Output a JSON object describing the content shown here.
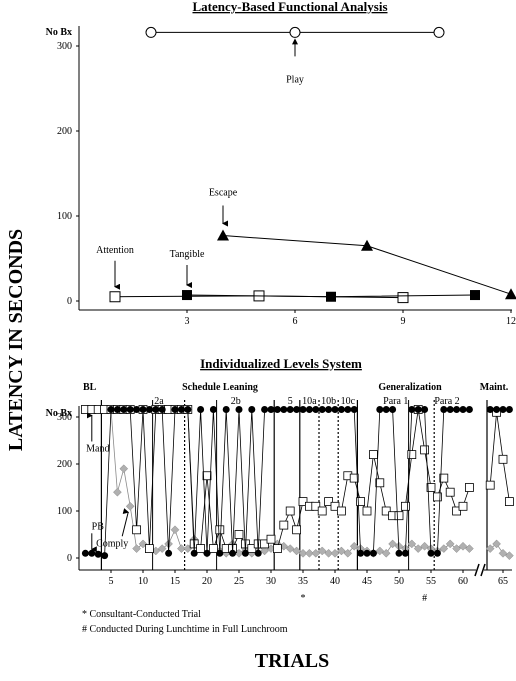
{
  "y_axis_label": "LATENCY IN SECONDS",
  "x_axis_label": "TRIALS",
  "chart_data": [
    {
      "type": "line",
      "title": "Latency-Based Functional Analysis",
      "xlabel": "",
      "ylabel": "LATENCY IN SECONDS",
      "xlim": [
        0,
        12
      ],
      "ylim": [
        0,
        310
      ],
      "x_ticks": [
        3,
        6,
        9,
        12
      ],
      "y_ticks": [
        0,
        100,
        200,
        300
      ],
      "y_top_label": "No Bx",
      "series": [
        {
          "name": "Play",
          "marker": "open-circle",
          "x": [
            2,
            6,
            10
          ],
          "y": [
            316,
            316,
            316
          ]
        },
        {
          "name": "Escape",
          "marker": "filled-triangle",
          "x": [
            4,
            8,
            12
          ],
          "y": [
            77,
            65,
            8
          ]
        },
        {
          "name": "Attention",
          "marker": "open-square",
          "x": [
            1,
            5,
            9
          ],
          "y": [
            5,
            6,
            4
          ]
        },
        {
          "name": "Tangible",
          "marker": "filled-square",
          "x": [
            3,
            7,
            11
          ],
          "y": [
            7,
            5,
            7
          ]
        }
      ],
      "annotations": [
        {
          "text": "Attention",
          "x": 1,
          "y": 5
        },
        {
          "text": "Tangible",
          "x": 3,
          "y": 7
        },
        {
          "text": "Escape",
          "x": 4,
          "y": 77
        },
        {
          "text": "Play",
          "x": 6,
          "y": 316
        }
      ]
    },
    {
      "type": "line",
      "title": "Individualized Levels System",
      "xlabel": "TRIALS",
      "ylabel": "LATENCY IN SECONDS",
      "xlim": [
        0,
        67
      ],
      "ylim": [
        0,
        320
      ],
      "axis_break_after": 62,
      "x_ticks": [
        5,
        10,
        15,
        20,
        25,
        30,
        35,
        40,
        45,
        50,
        55,
        60,
        65
      ],
      "y_ticks": [
        0,
        100,
        200,
        300
      ],
      "y_top_label": "No Bx",
      "phases": [
        "BL",
        "Schedule Leaning",
        "Generalization",
        "Maint."
      ],
      "sub_phases": [
        "2a",
        "2b",
        "5",
        "10a",
        "10b",
        "10c",
        "Para 1",
        "Para 2"
      ],
      "series": [
        {
          "name": "PB",
          "marker": "filled-circle",
          "x": [
            1,
            2,
            3,
            4,
            5,
            6,
            7,
            8,
            9,
            10,
            11,
            12,
            13,
            14,
            15,
            16,
            17,
            18,
            19,
            20,
            21,
            22,
            23,
            24,
            25,
            26,
            27,
            28,
            29,
            30,
            31,
            32,
            33,
            34,
            35,
            36,
            37,
            38,
            39,
            40,
            41,
            42,
            43,
            44,
            45,
            46,
            47,
            48,
            49,
            50,
            51,
            52,
            53,
            54,
            55,
            56,
            57,
            58,
            59,
            60,
            61,
            63,
            64,
            65,
            66
          ],
          "y": [
            10,
            10,
            8,
            5,
            316,
            316,
            316,
            316,
            316,
            316,
            316,
            316,
            316,
            10,
            316,
            316,
            316,
            10,
            316,
            10,
            316,
            10,
            316,
            10,
            316,
            10,
            316,
            10,
            316,
            316,
            316,
            316,
            316,
            316,
            316,
            316,
            316,
            316,
            316,
            316,
            316,
            316,
            316,
            10,
            10,
            10,
            316,
            316,
            316,
            10,
            10,
            316,
            316,
            316,
            10,
            10,
            316,
            316,
            316,
            316,
            316,
            316,
            316,
            316,
            316
          ]
        },
        {
          "name": "Mand",
          "marker": "open-square",
          "x": [
            1,
            2,
            3,
            4,
            5,
            6,
            7,
            8,
            9,
            10,
            11,
            12,
            13,
            14,
            15,
            16,
            17,
            18,
            19,
            20,
            21,
            22,
            23,
            24,
            25,
            26,
            27,
            28,
            29,
            30,
            31,
            32,
            33,
            34,
            35,
            36,
            37,
            38,
            39,
            40,
            41,
            42,
            43,
            44,
            45,
            46,
            47,
            48,
            49,
            50,
            51,
            52,
            53,
            54,
            55,
            56,
            57,
            58,
            59,
            60,
            61,
            63,
            64,
            65,
            66
          ],
          "y": [
            316,
            316,
            316,
            316,
            316,
            316,
            316,
            316,
            60,
            316,
            20,
            316,
            316,
            316,
            316,
            316,
            316,
            30,
            20,
            175,
            20,
            60,
            20,
            20,
            50,
            30,
            20,
            30,
            30,
            40,
            20,
            70,
            100,
            60,
            120,
            110,
            110,
            100,
            120,
            110,
            100,
            175,
            170,
            120,
            100,
            220,
            160,
            100,
            90,
            90,
            110,
            220,
            316,
            230,
            150,
            130,
            170,
            140,
            100,
            110,
            150,
            155,
            310,
            210,
            120
          ]
        },
        {
          "name": "Comply",
          "marker": "gray-diamond",
          "x": [
            1,
            2,
            3,
            4,
            5,
            6,
            7,
            8,
            9,
            10,
            11,
            12,
            13,
            14,
            15,
            16,
            17,
            18,
            19,
            20,
            21,
            22,
            23,
            24,
            25,
            26,
            27,
            28,
            29,
            30,
            31,
            32,
            33,
            34,
            35,
            36,
            37,
            38,
            39,
            40,
            41,
            42,
            43,
            44,
            45,
            46,
            47,
            48,
            49,
            50,
            51,
            52,
            53,
            54,
            55,
            56,
            57,
            58,
            59,
            60,
            61,
            63,
            64,
            65,
            66
          ],
          "y": [
            316,
            316,
            316,
            316,
            316,
            140,
            190,
            110,
            20,
            30,
            20,
            15,
            20,
            30,
            60,
            20,
            20,
            40,
            20,
            10,
            20,
            15,
            10,
            30,
            10,
            20,
            10,
            25,
            15,
            20,
            30,
            25,
            20,
            15,
            10,
            10,
            10,
            15,
            10,
            10,
            15,
            10,
            25,
            20,
            15,
            10,
            15,
            10,
            30,
            25,
            20,
            30,
            20,
            25,
            20,
            15,
            20,
            30,
            20,
            25,
            20,
            20,
            30,
            10,
            5
          ]
        }
      ],
      "annotations": [
        {
          "text": "Mand",
          "x": 2,
          "y": 316
        },
        {
          "text": "Comply",
          "x": 8,
          "y": 110
        },
        {
          "text": "PB",
          "x": 2,
          "y": 10
        },
        {
          "text": "*",
          "x": 35,
          "y": null
        },
        {
          "text": "#",
          "x": 54,
          "y": null
        }
      ],
      "footnotes": [
        "* Consultant-Conducted Trial",
        "# Conducted During Lunchtime in Full Lunchroom"
      ]
    }
  ]
}
